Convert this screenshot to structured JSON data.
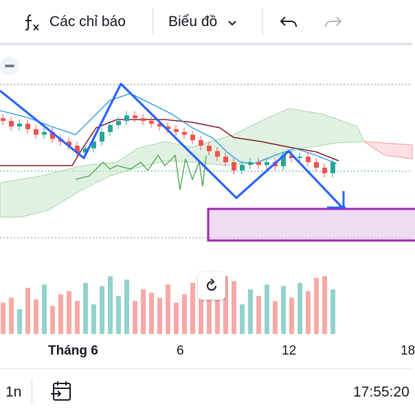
{
  "toolbar": {
    "indicators_label": "Các chỉ báo",
    "chart_type_label": "Biểu đồ"
  },
  "axis": {
    "x_labels": [
      "Tháng 6",
      "6",
      "12",
      "18"
    ]
  },
  "bottom": {
    "interval_label": "1n",
    "time": "17:55:20"
  },
  "colors": {
    "up": "#26a69a",
    "down": "#ef5350",
    "drawing": "#2962ff",
    "zone": "#9c27b0",
    "cloud": "#c8e6c9",
    "cloud_bear": "#ffcdd2",
    "base_line": "#801922",
    "conv_line": "#2196f3",
    "lag_line": "#43a047"
  },
  "chart_data": {
    "type": "candlestick",
    "candles": [
      {
        "o": 72,
        "c": 70,
        "dir": "down"
      },
      {
        "o": 70,
        "c": 66,
        "dir": "down"
      },
      {
        "o": 66,
        "c": 68,
        "dir": "up"
      },
      {
        "o": 68,
        "c": 64,
        "dir": "down"
      },
      {
        "o": 64,
        "c": 60,
        "dir": "down"
      },
      {
        "o": 60,
        "c": 62,
        "dir": "up"
      },
      {
        "o": 62,
        "c": 57,
        "dir": "down"
      },
      {
        "o": 57,
        "c": 55,
        "dir": "down"
      },
      {
        "o": 55,
        "c": 52,
        "dir": "down"
      },
      {
        "o": 52,
        "c": 47,
        "dir": "down"
      },
      {
        "o": 47,
        "c": 50,
        "dir": "up"
      },
      {
        "o": 50,
        "c": 55,
        "dir": "up"
      },
      {
        "o": 55,
        "c": 62,
        "dir": "up"
      },
      {
        "o": 62,
        "c": 67,
        "dir": "up"
      },
      {
        "o": 67,
        "c": 70,
        "dir": "up"
      },
      {
        "o": 70,
        "c": 74,
        "dir": "up"
      },
      {
        "o": 74,
        "c": 72,
        "dir": "down"
      },
      {
        "o": 72,
        "c": 70,
        "dir": "down"
      },
      {
        "o": 70,
        "c": 68,
        "dir": "down"
      },
      {
        "o": 68,
        "c": 66,
        "dir": "down"
      },
      {
        "o": 66,
        "c": 64,
        "dir": "down"
      },
      {
        "o": 64,
        "c": 62,
        "dir": "down"
      },
      {
        "o": 62,
        "c": 60,
        "dir": "down"
      },
      {
        "o": 60,
        "c": 56,
        "dir": "down"
      },
      {
        "o": 56,
        "c": 52,
        "dir": "down"
      },
      {
        "o": 52,
        "c": 48,
        "dir": "down"
      },
      {
        "o": 48,
        "c": 44,
        "dir": "down"
      },
      {
        "o": 44,
        "c": 40,
        "dir": "down"
      },
      {
        "o": 40,
        "c": 34,
        "dir": "down"
      },
      {
        "o": 34,
        "c": 38,
        "dir": "up"
      },
      {
        "o": 38,
        "c": 40,
        "dir": "up"
      },
      {
        "o": 40,
        "c": 38,
        "dir": "down"
      },
      {
        "o": 38,
        "c": 40,
        "dir": "up"
      },
      {
        "o": 40,
        "c": 37,
        "dir": "down"
      },
      {
        "o": 37,
        "c": 45,
        "dir": "up"
      },
      {
        "o": 45,
        "c": 43,
        "dir": "down"
      },
      {
        "o": 43,
        "c": 44,
        "dir": "up"
      },
      {
        "o": 44,
        "c": 40,
        "dir": "down"
      },
      {
        "o": 40,
        "c": 36,
        "dir": "down"
      },
      {
        "o": 36,
        "c": 32,
        "dir": "down"
      },
      {
        "o": 32,
        "c": 40,
        "dir": "up"
      }
    ],
    "volumes": [
      38,
      44,
      30,
      56,
      42,
      60,
      34,
      48,
      52,
      40,
      62,
      36,
      58,
      70,
      46,
      66,
      40,
      54,
      50,
      44,
      60,
      38,
      48,
      62,
      42,
      56,
      50,
      70,
      64,
      36,
      54,
      46,
      60,
      40,
      58,
      44,
      62,
      52,
      68,
      70,
      54
    ]
  }
}
